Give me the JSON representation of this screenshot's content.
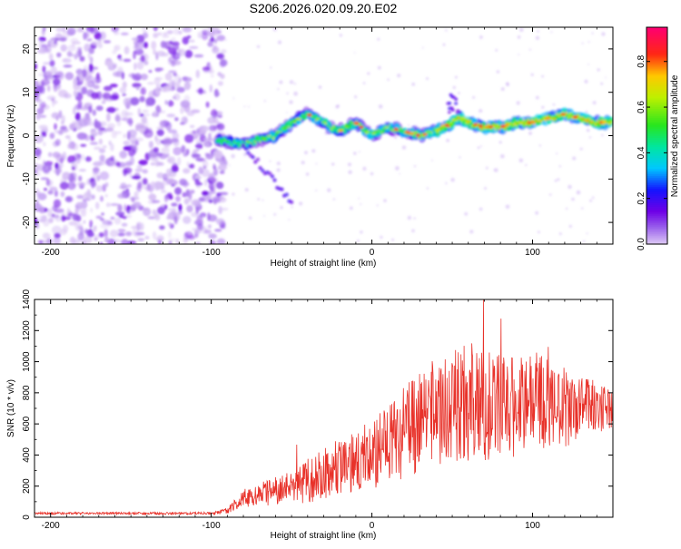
{
  "title": "S206.2026.020.09.20.E02",
  "colors": {
    "series_line": "#e8322a",
    "axis": "#000000",
    "background": "#ffffff"
  },
  "chart_data": [
    {
      "type": "heatmap",
      "title": "S206.2026.020.09.20.E02",
      "xlabel": "Height of straight line (km)",
      "ylabel": "Frequency (Hz)",
      "xlim": [
        -210,
        150
      ],
      "ylim": [
        -25,
        25
      ],
      "x_ticks": [
        -200,
        -100,
        0,
        100
      ],
      "y_ticks": [
        -20,
        -10,
        0,
        10,
        20
      ],
      "colorbar": {
        "label": "Normalized spectral amplitude",
        "range": [
          0.0,
          0.95
        ],
        "ticks": [
          "0.0",
          "0.2",
          "0.4",
          "0.6",
          "0.8"
        ],
        "tick_values": [
          0.0,
          0.2,
          0.4,
          0.6,
          0.8
        ]
      },
      "ridge": {
        "description_values_x": [
          -95,
          -80,
          -70,
          -60,
          -50,
          -40,
          -30,
          -20,
          -10,
          0,
          10,
          20,
          30,
          40,
          50,
          55,
          60,
          70,
          80,
          90,
          100,
          110,
          120,
          130,
          140,
          150
        ],
        "frequency_hz": [
          -1,
          -2,
          -1,
          0,
          3,
          5,
          3,
          1,
          3,
          0,
          2,
          1,
          0,
          1,
          3,
          4,
          3,
          2,
          2,
          3,
          3,
          4,
          5,
          4,
          3,
          3
        ]
      }
    },
    {
      "type": "line",
      "xlabel": "Height of straight line (km)",
      "ylabel": "SNR (10 * v/v)",
      "xlim": [
        -210,
        150
      ],
      "ylim": [
        0,
        1400
      ],
      "x_ticks": [
        -200,
        -100,
        0,
        100
      ],
      "y_ticks": [
        0,
        200,
        400,
        600,
        800,
        1000,
        1200,
        1400
      ],
      "series": [
        {
          "name": "SNR",
          "envelope_x": [
            -210,
            -100,
            -90,
            -80,
            -60,
            -40,
            -20,
            0,
            20,
            40,
            60,
            80,
            100,
            120,
            150
          ],
          "envelope_mean": [
            25,
            25,
            40,
            120,
            170,
            230,
            330,
            400,
            540,
            680,
            760,
            700,
            760,
            700,
            700
          ],
          "envelope_amplitude": [
            8,
            8,
            20,
            60,
            90,
            150,
            180,
            220,
            300,
            350,
            400,
            350,
            320,
            250,
            120
          ]
        }
      ]
    }
  ]
}
